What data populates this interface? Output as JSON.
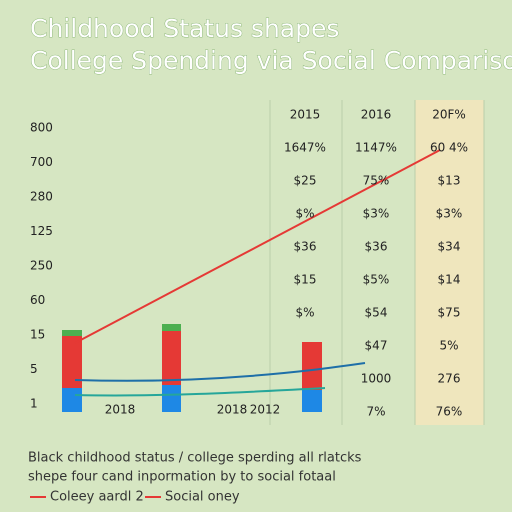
{
  "header": {
    "title": "Childhood Status shapes College Spending via Social Comparison"
  },
  "axis_labels": [
    "800",
    "700",
    "280",
    "125",
    "250",
    "60",
    "15",
    "5",
    "1"
  ],
  "x_labels": [
    "2018",
    "2018",
    "2012"
  ],
  "table": {
    "rows": [
      [
        "2015",
        "2016",
        "20F%"
      ],
      [
        "1647%",
        "1147%",
        "60 4%"
      ],
      [
        "$25",
        "75%",
        "$13"
      ],
      [
        "$%",
        "$3%",
        "$3%"
      ],
      [
        "$36",
        "$36",
        "$34"
      ],
      [
        "$15",
        "$5%",
        "$14"
      ],
      [
        "$%",
        "$54",
        "$75"
      ],
      [
        null,
        "$47",
        "5%"
      ],
      [
        null,
        "1000",
        "276"
      ],
      [
        null,
        "7%",
        "76%"
      ]
    ]
  },
  "caption": [
    "Black childhood status / college sperding all rlatcks",
    "shepe four cand inpormation by to social fotaal"
  ],
  "legend": [
    "Coleey aardl 2",
    "Social oney"
  ]
}
